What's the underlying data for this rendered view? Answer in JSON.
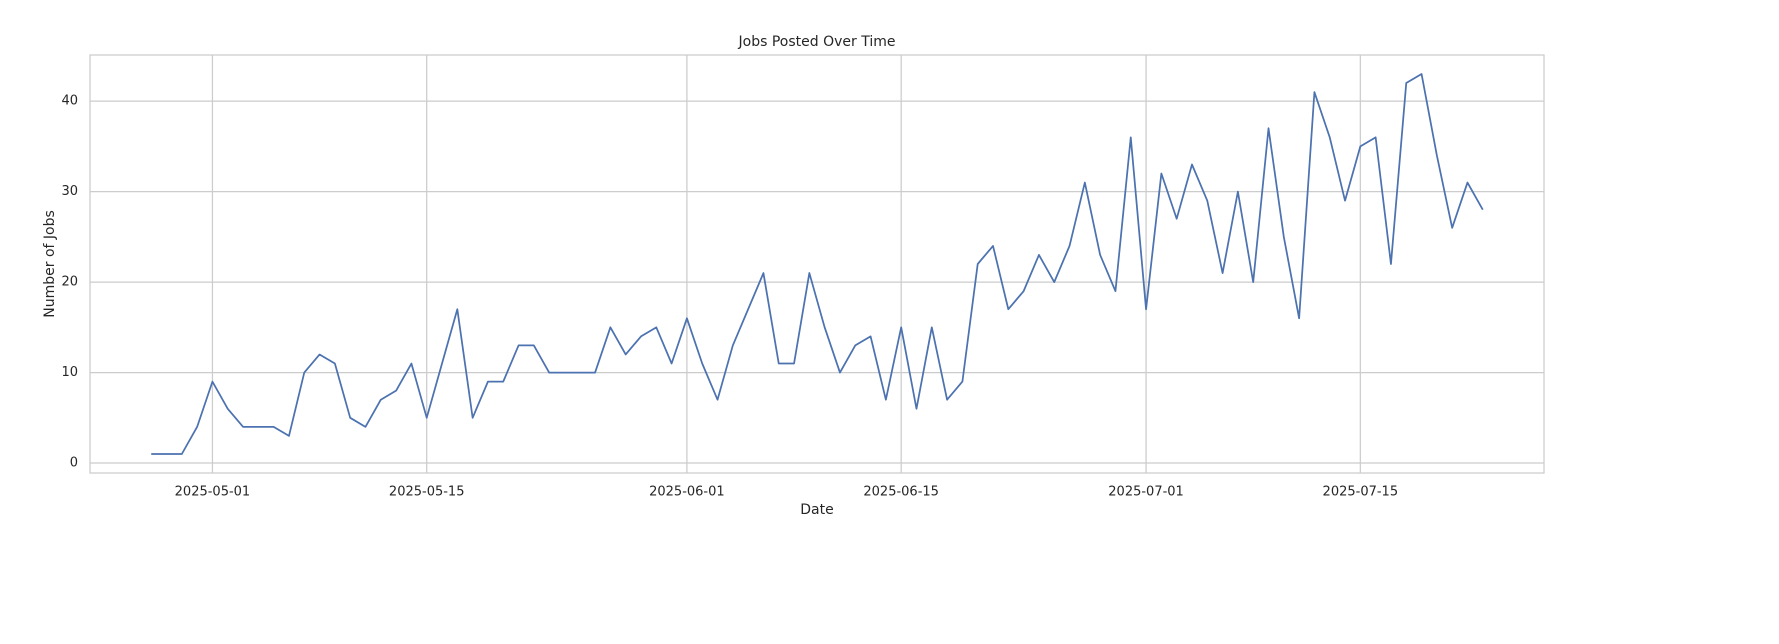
{
  "chart_data": {
    "type": "line",
    "title": "Jobs Posted Over Time",
    "x_label": "Date",
    "y_label": "Number of Jobs",
    "color": "#4c72b0",
    "grid": true,
    "x": [
      "2025-04-27",
      "2025-04-28",
      "2025-04-29",
      "2025-04-30",
      "2025-05-01",
      "2025-05-02",
      "2025-05-03",
      "2025-05-04",
      "2025-05-05",
      "2025-05-06",
      "2025-05-07",
      "2025-05-08",
      "2025-05-09",
      "2025-05-10",
      "2025-05-11",
      "2025-05-12",
      "2025-05-13",
      "2025-05-14",
      "2025-05-15",
      "2025-05-16",
      "2025-05-17",
      "2025-05-18",
      "2025-05-19",
      "2025-05-20",
      "2025-05-21",
      "2025-05-22",
      "2025-05-23",
      "2025-05-24",
      "2025-05-25",
      "2025-05-26",
      "2025-05-27",
      "2025-05-28",
      "2025-05-29",
      "2025-05-30",
      "2025-05-31",
      "2025-06-01",
      "2025-06-02",
      "2025-06-03",
      "2025-06-04",
      "2025-06-05",
      "2025-06-06",
      "2025-06-07",
      "2025-06-08",
      "2025-06-09",
      "2025-06-10",
      "2025-06-11",
      "2025-06-12",
      "2025-06-13",
      "2025-06-14",
      "2025-06-15",
      "2025-06-16",
      "2025-06-17",
      "2025-06-18",
      "2025-06-19",
      "2025-06-20",
      "2025-06-21",
      "2025-06-22",
      "2025-06-23",
      "2025-06-24",
      "2025-06-25",
      "2025-06-26",
      "2025-06-27",
      "2025-06-28",
      "2025-06-29",
      "2025-06-30",
      "2025-07-01",
      "2025-07-02",
      "2025-07-03",
      "2025-07-04",
      "2025-07-05",
      "2025-07-06",
      "2025-07-07",
      "2025-07-08",
      "2025-07-09",
      "2025-07-10",
      "2025-07-11",
      "2025-07-12",
      "2025-07-13",
      "2025-07-14",
      "2025-07-15",
      "2025-07-16",
      "2025-07-17",
      "2025-07-18",
      "2025-07-19",
      "2025-07-20",
      "2025-07-21",
      "2025-07-22",
      "2025-07-23"
    ],
    "values": [
      1,
      1,
      1,
      4,
      9,
      6,
      4,
      4,
      4,
      3,
      10,
      12,
      11,
      5,
      4,
      7,
      8,
      11,
      5,
      11,
      17,
      5,
      9,
      9,
      13,
      13,
      10,
      10,
      10,
      10,
      15,
      12,
      14,
      15,
      11,
      16,
      11,
      7,
      13,
      17,
      21,
      11,
      11,
      21,
      15,
      10,
      13,
      14,
      7,
      15,
      6,
      15,
      7,
      9,
      22,
      24,
      17,
      19,
      23,
      20,
      24,
      31,
      23,
      19,
      36,
      17,
      32,
      27,
      33,
      29,
      21,
      30,
      20,
      37,
      25,
      16,
      41,
      36,
      29,
      35,
      36,
      22,
      42,
      43,
      34,
      26,
      31,
      28
    ],
    "xlim": [
      "2025-04-23",
      "2025-07-27"
    ],
    "xticks": [
      "2025-05-01",
      "2025-05-15",
      "2025-06-01",
      "2025-06-15",
      "2025-07-01",
      "2025-07-15"
    ],
    "ylim": [
      -1.1,
      45.1
    ],
    "yticks": [
      0,
      10,
      20,
      30,
      40
    ]
  }
}
